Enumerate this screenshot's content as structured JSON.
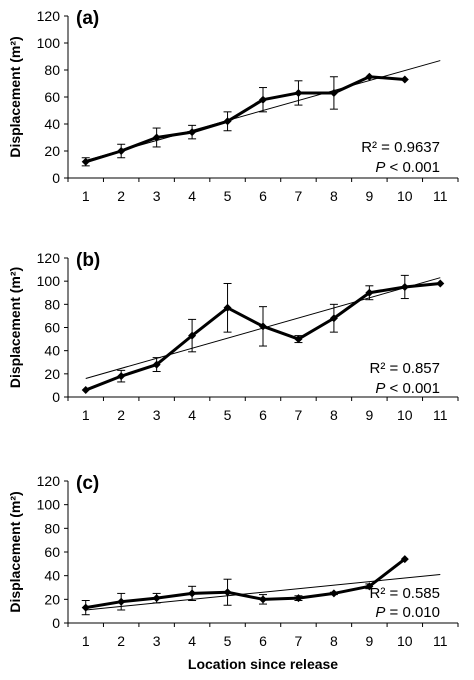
{
  "figure": {
    "xlabel": "Location since release"
  },
  "chart_data": [
    {
      "type": "line",
      "panel_label": "(a)",
      "ylabel": "Displacement (m²)",
      "xlim": [
        0.5,
        11.5
      ],
      "ylim": [
        0,
        120
      ],
      "x_ticks": [
        1,
        2,
        3,
        4,
        5,
        6,
        7,
        8,
        9,
        10,
        11
      ],
      "y_ticks": [
        0,
        20,
        40,
        60,
        80,
        100,
        120
      ],
      "grid": false,
      "stats": {
        "r2": "R² = 0.9637",
        "p_label": "P",
        "p_rest": " < 0.001"
      },
      "series": [
        {
          "x": [
            1,
            2,
            3,
            4,
            5,
            6,
            7,
            8,
            9,
            10
          ],
          "y": [
            12,
            20,
            30,
            34,
            42,
            58,
            63,
            63,
            75,
            73
          ],
          "error": [
            3,
            5,
            7,
            5,
            7,
            9,
            9,
            12,
            0,
            0
          ]
        }
      ],
      "trendline": {
        "x": [
          1,
          11
        ],
        "y": [
          13,
          87
        ]
      }
    },
    {
      "type": "line",
      "panel_label": "(b)",
      "ylabel": "Displacement (m²)",
      "xlim": [
        0.5,
        11.5
      ],
      "ylim": [
        0,
        120
      ],
      "x_ticks": [
        1,
        2,
        3,
        4,
        5,
        6,
        7,
        8,
        9,
        10,
        11
      ],
      "y_ticks": [
        0,
        20,
        40,
        60,
        80,
        100,
        120
      ],
      "grid": false,
      "stats": {
        "r2": "R² = 0.857",
        "p_label": "P",
        "p_rest": " < 0.001"
      },
      "series": [
        {
          "x": [
            1,
            2,
            3,
            4,
            5,
            6,
            7,
            8,
            9,
            10,
            11
          ],
          "y": [
            6,
            18,
            28,
            53,
            77,
            61,
            50,
            68,
            90,
            95,
            98
          ],
          "error": [
            0,
            5,
            6,
            14,
            21,
            17,
            3,
            12,
            6,
            10,
            0
          ]
        }
      ],
      "trendline": {
        "x": [
          1,
          11
        ],
        "y": [
          16,
          103
        ]
      }
    },
    {
      "type": "line",
      "panel_label": "(c)",
      "ylabel": "Displacement (m²)",
      "xlim": [
        0.5,
        11.5
      ],
      "ylim": [
        0,
        120
      ],
      "x_ticks": [
        1,
        2,
        3,
        4,
        5,
        6,
        7,
        8,
        9,
        10,
        11
      ],
      "y_ticks": [
        0,
        20,
        40,
        60,
        80,
        100,
        120
      ],
      "grid": false,
      "stats": {
        "r2": "R² = 0.585",
        "p_label": "P",
        "p_rest": " = 0.010"
      },
      "series": [
        {
          "x": [
            1,
            2,
            3,
            4,
            5,
            6,
            7,
            8,
            9,
            10
          ],
          "y": [
            13,
            18,
            21,
            25,
            26,
            20,
            21,
            25,
            31,
            54
          ],
          "error": [
            6,
            7,
            4,
            6,
            11,
            4,
            2,
            1,
            2,
            0
          ]
        }
      ],
      "trendline": {
        "x": [
          1,
          11
        ],
        "y": [
          11,
          41
        ]
      }
    }
  ]
}
